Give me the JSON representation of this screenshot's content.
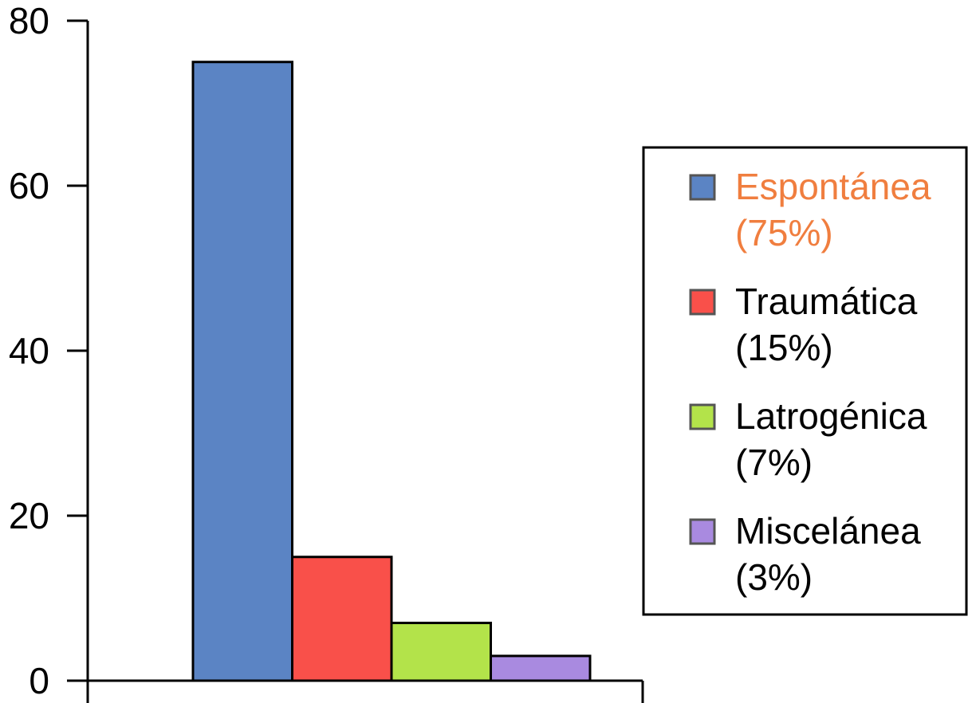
{
  "chart_data": {
    "type": "bar",
    "categories": [
      "Espontánea (75%)",
      "Traumática (15%)",
      "Latrogénica (7%)",
      "Miscelánea (3%)"
    ],
    "series": [
      {
        "values": [
          75,
          15,
          7,
          3
        ]
      }
    ],
    "ylim": [
      0,
      80
    ],
    "yticks": [
      0,
      20,
      40,
      60,
      80
    ],
    "ytick_labels": [
      "0",
      "20",
      "40",
      "60",
      "80"
    ],
    "grid": false,
    "legend_position": "right",
    "colors": [
      "#5b84c4",
      "#f9504a",
      "#b3e34a",
      "#a98ae0"
    ],
    "legend": [
      {
        "name": "Espontánea",
        "pct": "(75%)",
        "color": "#5b84c4",
        "text_color": "#f07e3f"
      },
      {
        "name": "Traumática",
        "pct": "(15%)",
        "color": "#f9504a",
        "text_color": "#000000"
      },
      {
        "name": "Latrogénica",
        "pct": "(7%)",
        "color": "#b3e34a",
        "text_color": "#000000"
      },
      {
        "name": "Miscelánea",
        "pct": "(3%)",
        "color": "#a98ae0",
        "text_color": "#000000"
      }
    ]
  }
}
